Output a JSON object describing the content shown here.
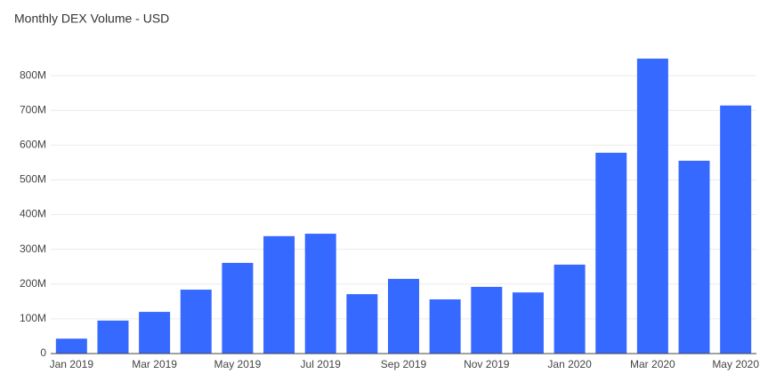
{
  "chart_data": {
    "type": "bar",
    "title": "Monthly DEX Volume - USD",
    "categories": [
      "Jan 2019",
      null,
      "Mar 2019",
      null,
      "May 2019",
      null,
      "Jul 2019",
      null,
      "Sep 2019",
      null,
      "Nov 2019",
      null,
      "Jan 2020",
      null,
      "Mar 2020",
      null,
      "May 2020"
    ],
    "values": [
      43000000,
      95000000,
      120000000,
      184000000,
      261000000,
      338000000,
      345000000,
      171000000,
      215000000,
      156000000,
      192000000,
      176000000,
      256000000,
      578000000,
      849000000,
      555000000,
      714000000
    ],
    "color": "#3669ff",
    "ylim": [
      0,
      900000000
    ],
    "yticks": [
      {
        "value": 0,
        "label": "0"
      },
      {
        "value": 100000000,
        "label": "100M"
      },
      {
        "value": 200000000,
        "label": "200M"
      },
      {
        "value": 300000000,
        "label": "300M"
      },
      {
        "value": 400000000,
        "label": "400M"
      },
      {
        "value": 500000000,
        "label": "500M"
      },
      {
        "value": 600000000,
        "label": "600M"
      },
      {
        "value": 700000000,
        "label": "700M"
      },
      {
        "value": 800000000,
        "label": "800M"
      }
    ],
    "grid": true
  }
}
